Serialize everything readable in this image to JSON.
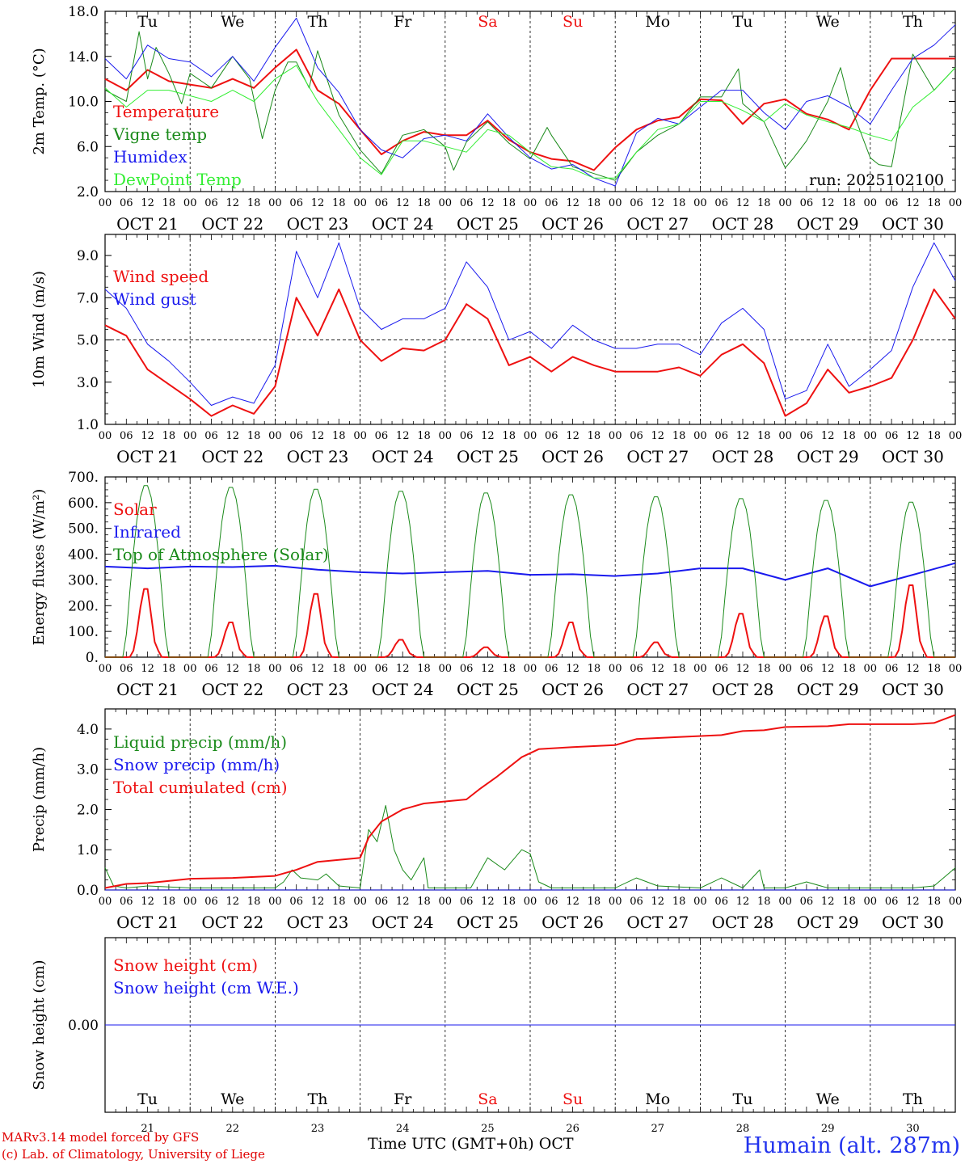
{
  "days_of_week": [
    "Tu",
    "We",
    "Th",
    "Fr",
    "Sa",
    "Su",
    "Mo",
    "Tu",
    "We",
    "Th"
  ],
  "weekend_flags": [
    false,
    false,
    false,
    false,
    true,
    true,
    false,
    false,
    false,
    false
  ],
  "date_labels": [
    "OCT 21",
    "OCT 22",
    "OCT 23",
    "OCT 24",
    "OCT 25",
    "OCT 26",
    "OCT 27",
    "OCT 28",
    "OCT 29",
    "OCT 30"
  ],
  "day_numbers": [
    "21",
    "22",
    "23",
    "24",
    "25",
    "26",
    "27",
    "28",
    "29",
    "30"
  ],
  "hour_ticks": [
    "00",
    "06",
    "12",
    "18"
  ],
  "hour_tick_end": "00",
  "colors": {
    "red": "#ee1111",
    "green": "#1a8a1a",
    "blue": "#1a1aee",
    "lightgreen": "#33ee33",
    "black": "#000000"
  },
  "footer": {
    "model_line": "MARv3.14 model forced by GFS",
    "credit_line": "(c) Lab. of Climatology, University of Liege",
    "axis_title": "Time UTC (GMT+0h)",
    "month": "OCT",
    "site": "Humain (alt. 287m)"
  },
  "chart_data": [
    {
      "type": "line",
      "id": "temp",
      "ylabel": "2m Temp. (°C)",
      "ylim": [
        2,
        18
      ],
      "yticks": [
        "2.0",
        "6.0",
        "10.0",
        "14.0",
        "18.0"
      ],
      "ytick_values": [
        2,
        6,
        10,
        14,
        18
      ],
      "annotation": "run: 2025102100",
      "x_unit": "days since Oct 21 00 UTC",
      "series": [
        {
          "name": "Temperature",
          "color": "red",
          "width": 2,
          "x": [
            0,
            0.25,
            0.5,
            0.75,
            1,
            1.25,
            1.5,
            1.75,
            2,
            2.25,
            2.5,
            2.75,
            3,
            3.25,
            3.5,
            3.75,
            4,
            4.25,
            4.5,
            4.75,
            5,
            5.25,
            5.5,
            5.75,
            6,
            6.25,
            6.5,
            6.75,
            7,
            7.25,
            7.5,
            7.75,
            8,
            8.25,
            8.5,
            8.75,
            9,
            9.25,
            9.5,
            9.75,
            10
          ],
          "values": [
            12,
            11,
            12.8,
            11.8,
            11.5,
            11.2,
            12,
            11.2,
            13,
            14.6,
            11,
            9.8,
            7.5,
            5.3,
            6.5,
            7.3,
            7,
            7,
            8.3,
            6.6,
            5.5,
            4.9,
            4.7,
            3.9,
            5.9,
            7.5,
            8.3,
            8.6,
            10.2,
            10.1,
            8,
            9.8,
            10.2,
            8.9,
            8.4,
            7.5,
            11,
            13.8,
            13.8,
            13.8,
            13.8
          ]
        },
        {
          "name": "Vigne temp",
          "color": "green",
          "width": 1,
          "x": [
            0,
            0.25,
            0.4,
            0.5,
            0.6,
            0.75,
            0.9,
            1,
            1.25,
            1.5,
            1.7,
            1.85,
            2,
            2.15,
            2.25,
            2.4,
            2.5,
            2.75,
            3,
            3.25,
            3.5,
            3.75,
            4,
            4.1,
            4.25,
            4.5,
            4.75,
            5,
            5.2,
            5.25,
            5.5,
            5.75,
            6,
            6.25,
            6.5,
            6.75,
            7,
            7.25,
            7.45,
            7.5,
            7.75,
            8,
            8.1,
            8.25,
            8.5,
            8.65,
            8.75,
            9,
            9.1,
            9.25,
            9.5,
            9.75,
            10
          ],
          "values": [
            11,
            10,
            16.2,
            12,
            14.8,
            12.5,
            9.8,
            12.5,
            11.2,
            14,
            12,
            6.7,
            11,
            13.5,
            13.5,
            11.2,
            14.5,
            8.8,
            5.7,
            3.6,
            7,
            7.5,
            6,
            3.9,
            6.4,
            8.2,
            6.3,
            4.9,
            7.7,
            7,
            4.2,
            3.6,
            3,
            5.5,
            7,
            8,
            10.4,
            10.4,
            12.9,
            9.8,
            8.2,
            4.1,
            5,
            6.5,
            10,
            13,
            10,
            5,
            4.4,
            4.2,
            14.2,
            11,
            13
          ]
        },
        {
          "name": "Humidex",
          "color": "blue",
          "width": 1,
          "x": [
            0,
            0.25,
            0.5,
            0.75,
            1,
            1.25,
            1.5,
            1.75,
            2,
            2.25,
            2.5,
            2.75,
            3,
            3.25,
            3.5,
            3.75,
            4,
            4.25,
            4.5,
            4.75,
            5,
            5.25,
            5.5,
            5.75,
            6,
            6.25,
            6.5,
            6.75,
            7,
            7.25,
            7.5,
            7.75,
            8,
            8.25,
            8.5,
            8.75,
            9,
            9.25,
            9.5,
            9.75,
            10
          ],
          "values": [
            13.8,
            12,
            15,
            13.8,
            13.5,
            12.2,
            14,
            11.8,
            14.8,
            17.4,
            13,
            10.8,
            7.5,
            5.7,
            5,
            6.7,
            7,
            6.5,
            8.9,
            6.8,
            5,
            4,
            4.4,
            3.2,
            2.5,
            7.2,
            8.5,
            8,
            9.5,
            11,
            11,
            9,
            7.5,
            10,
            10.5,
            9.5,
            8,
            11,
            13.8,
            15,
            16.8
          ]
        },
        {
          "name": "DewPoint Temp",
          "color": "lightgreen",
          "width": 1,
          "x": [
            0,
            0.25,
            0.5,
            0.75,
            1,
            1.25,
            1.5,
            1.75,
            2,
            2.25,
            2.5,
            2.75,
            3,
            3.25,
            3.5,
            3.75,
            4,
            4.25,
            4.5,
            4.75,
            5,
            5.25,
            5.5,
            5.75,
            6,
            6.25,
            6.5,
            6.75,
            7,
            7.25,
            7.5,
            7.75,
            8,
            8.25,
            8.5,
            8.75,
            9,
            9.25,
            9.5,
            9.75,
            10
          ],
          "values": [
            11.2,
            9.5,
            11,
            11,
            10.5,
            10,
            11,
            10,
            12,
            13.2,
            10,
            7.5,
            5,
            3.5,
            6.5,
            6.5,
            6,
            5.5,
            7.5,
            7,
            5.5,
            4.2,
            4,
            3.2,
            3.2,
            5.5,
            7.5,
            8,
            10,
            10,
            9.2,
            8.2,
            9.8,
            8.8,
            8.2,
            7.7,
            7,
            6.5,
            9.5,
            11,
            13
          ]
        }
      ]
    },
    {
      "type": "line",
      "id": "wind",
      "ylabel": "10m Wind (m/s)",
      "ylim": [
        1,
        10
      ],
      "yticks": [
        "1.0",
        "3.0",
        "5.0",
        "7.0",
        "9.0"
      ],
      "ytick_values": [
        1,
        3,
        5,
        7,
        9
      ],
      "ref_line": 5,
      "x_unit": "days since Oct 21 00 UTC",
      "series": [
        {
          "name": "Wind speed",
          "color": "red",
          "width": 2,
          "x": [
            0,
            0.25,
            0.5,
            0.75,
            1,
            1.25,
            1.5,
            1.75,
            2,
            2.25,
            2.5,
            2.75,
            3,
            3.25,
            3.5,
            3.75,
            4,
            4.25,
            4.5,
            4.75,
            5,
            5.25,
            5.5,
            5.75,
            6,
            6.25,
            6.5,
            6.75,
            7,
            7.25,
            7.5,
            7.75,
            8,
            8.25,
            8.5,
            8.75,
            9,
            9.25,
            9.5,
            9.75,
            10
          ],
          "values": [
            5.7,
            5.2,
            3.6,
            2.9,
            2.2,
            1.4,
            1.9,
            1.5,
            2.8,
            7,
            5.2,
            7.4,
            5,
            4,
            4.6,
            4.5,
            5,
            6.7,
            6,
            3.8,
            4.2,
            3.5,
            4.2,
            3.8,
            3.5,
            3.5,
            3.5,
            3.7,
            3.3,
            4.3,
            4.8,
            3.9,
            1.4,
            2,
            3.6,
            2.5,
            2.8,
            3.2,
            5,
            7.4,
            6
          ]
        },
        {
          "name": "Wind gust",
          "color": "blue",
          "width": 1,
          "x": [
            0,
            0.25,
            0.5,
            0.75,
            1,
            1.25,
            1.5,
            1.75,
            2,
            2.25,
            2.5,
            2.75,
            3,
            3.25,
            3.5,
            3.75,
            4,
            4.25,
            4.5,
            4.75,
            5,
            5.25,
            5.5,
            5.75,
            6,
            6.25,
            6.5,
            6.75,
            7,
            7.25,
            7.5,
            7.75,
            8,
            8.25,
            8.5,
            8.75,
            9,
            9.25,
            9.5,
            9.75,
            10
          ],
          "values": [
            7.4,
            6.5,
            4.8,
            4,
            3,
            1.9,
            2.3,
            2,
            3.8,
            9.2,
            7,
            9.6,
            6.5,
            5.5,
            6,
            6,
            6.5,
            8.7,
            7.5,
            5,
            5.4,
            4.6,
            5.7,
            5,
            4.6,
            4.6,
            4.8,
            4.8,
            4.3,
            5.8,
            6.5,
            5.5,
            2.2,
            2.6,
            4.8,
            2.8,
            3.6,
            4.5,
            7.5,
            9.6,
            7.8
          ]
        }
      ]
    },
    {
      "type": "line",
      "id": "energy",
      "ylabel": "Energy fluxes (W/m²)",
      "ylim": [
        0,
        700
      ],
      "yticks": [
        "0.",
        "100.",
        "200.",
        "300.",
        "400.",
        "500.",
        "600.",
        "700."
      ],
      "ytick_values": [
        0,
        100,
        200,
        300,
        400,
        500,
        600,
        700
      ],
      "x_unit": "days since Oct 21 00 UTC",
      "series": [
        {
          "name": "Solar",
          "color": "red",
          "width": 2,
          "daily_peaks": [
            275,
            140,
            255,
            70,
            40,
            140,
            60,
            175,
            165,
            290
          ],
          "daylight_hours": [
            6.5,
            16.5
          ]
        },
        {
          "name": "Infrared",
          "color": "blue",
          "width": 2,
          "x": [
            0,
            0.5,
            1,
            1.5,
            2,
            2.5,
            3,
            3.5,
            4,
            4.5,
            5,
            5.5,
            6,
            6.5,
            7,
            7.5,
            8,
            8.5,
            9,
            9.5,
            10
          ],
          "values": [
            352,
            345,
            352,
            350,
            355,
            340,
            330,
            325,
            330,
            335,
            320,
            322,
            315,
            325,
            345,
            345,
            300,
            345,
            275,
            320,
            365
          ]
        },
        {
          "name": "Top of Atmosphere (Solar)",
          "color": "green",
          "width": 1,
          "daily_peaks": [
            672,
            665,
            658,
            650,
            643,
            636,
            628,
            621,
            614,
            607
          ],
          "daylight_hours": [
            5.5,
            17.5
          ]
        }
      ]
    },
    {
      "type": "line",
      "id": "precip",
      "ylabel": "Precip (mm/h)",
      "ylim": [
        0,
        4.5
      ],
      "yticks": [
        "0.0",
        "1.0",
        "2.0",
        "3.0",
        "4.0"
      ],
      "ytick_values": [
        0,
        1,
        2,
        3,
        4
      ],
      "x_unit": "days since Oct 21 00 UTC",
      "series": [
        {
          "name": "Liquid precip (mm/h)",
          "color": "green",
          "width": 1,
          "x": [
            0,
            0.1,
            0.25,
            0.5,
            1,
            1.5,
            2,
            2.1,
            2.2,
            2.3,
            2.5,
            2.6,
            2.75,
            3,
            3.1,
            3.2,
            3.3,
            3.4,
            3.5,
            3.6,
            3.75,
            3.8,
            4,
            4.3,
            4.5,
            4.7,
            4.9,
            5,
            5.1,
            5.25,
            5.5,
            6,
            6.25,
            6.5,
            7,
            7.25,
            7.5,
            7.7,
            7.75,
            8,
            8.25,
            8.5,
            9,
            9.5,
            9.75,
            10
          ],
          "values": [
            0.55,
            0.1,
            0.05,
            0.1,
            0.05,
            0.05,
            0.05,
            0.2,
            0.5,
            0.3,
            0.25,
            0.4,
            0.1,
            0.05,
            1.5,
            1.2,
            2.1,
            1.0,
            0.5,
            0.25,
            0.8,
            0.05,
            0.05,
            0.05,
            0.8,
            0.5,
            1.0,
            0.9,
            0.2,
            0.05,
            0.05,
            0.05,
            0.3,
            0.1,
            0.05,
            0.3,
            0.05,
            0.5,
            0.05,
            0.05,
            0.2,
            0.05,
            0.05,
            0.05,
            0.1,
            0.55
          ]
        },
        {
          "name": "Snow precip (mm/h)",
          "color": "blue",
          "width": 1,
          "x": [
            0,
            10
          ],
          "values": [
            0,
            0
          ]
        },
        {
          "name": "Total cumulated (cm)",
          "color": "red",
          "width": 2,
          "x": [
            0,
            0.25,
            0.5,
            1,
            1.5,
            2,
            2.25,
            2.5,
            3,
            3.1,
            3.25,
            3.5,
            3.75,
            4,
            4.25,
            4.4,
            4.6,
            4.9,
            5.1,
            5.5,
            6,
            6.25,
            6.75,
            7.25,
            7.5,
            7.75,
            8,
            8.5,
            8.75,
            9,
            9.5,
            9.75,
            10
          ],
          "values": [
            0.05,
            0.15,
            0.17,
            0.28,
            0.3,
            0.35,
            0.5,
            0.7,
            0.8,
            1.3,
            1.7,
            2.0,
            2.15,
            2.2,
            2.25,
            2.5,
            2.8,
            3.3,
            3.5,
            3.55,
            3.6,
            3.75,
            3.8,
            3.85,
            3.95,
            3.97,
            4.05,
            4.07,
            4.12,
            4.12,
            4.12,
            4.15,
            4.35
          ]
        }
      ]
    },
    {
      "type": "line",
      "id": "snow",
      "ylabel": "Snow height (cm)",
      "ylim": [
        -1,
        1
      ],
      "yticks": [
        "0.00"
      ],
      "ytick_values": [
        0
      ],
      "x_unit": "days since Oct 21 00 UTC",
      "series": [
        {
          "name": "Snow height (cm)",
          "color": "red",
          "width": 1,
          "x": [
            0,
            10
          ],
          "values": [
            0,
            0
          ]
        },
        {
          "name": "Snow height (cm W.E.)",
          "color": "blue",
          "width": 1,
          "x": [
            0,
            10
          ],
          "values": [
            0,
            0
          ]
        }
      ]
    }
  ]
}
